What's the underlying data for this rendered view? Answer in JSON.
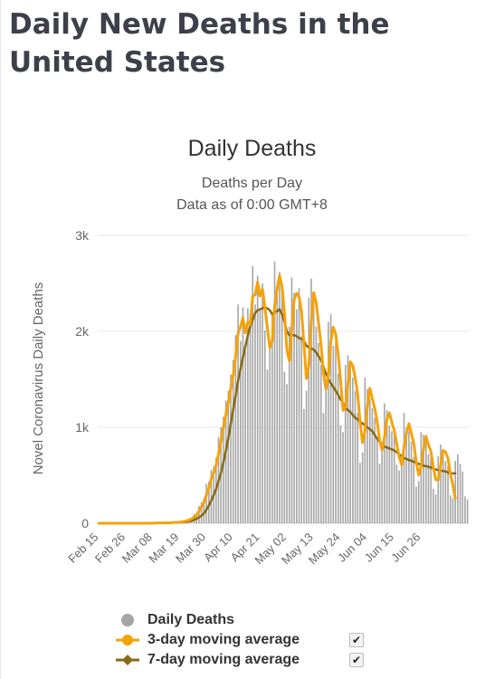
{
  "page": {
    "title": "Daily New Deaths in the United States"
  },
  "chart_data": {
    "type": "bar",
    "title": "Daily Deaths",
    "subtitle": "Deaths per Day",
    "subtitle2": "Data as of 0:00 GMT+8",
    "ylabel": "Novel Coronavirus Daily Deaths",
    "xlabel": "",
    "ylim": [
      0,
      3000
    ],
    "y_ticks": [
      "0",
      "1k",
      "2k",
      "3k"
    ],
    "y_tick_values": [
      0,
      1000,
      2000,
      3000
    ],
    "x_ticks": [
      "Feb 15",
      "Feb 26",
      "Mar 08",
      "Mar 19",
      "Mar 30",
      "Apr 10",
      "Apr 21",
      "May 02",
      "May 13",
      "May 24",
      "Jun 04",
      "Jun 15",
      "Jun 26"
    ],
    "x_range": [
      "Feb 15",
      "Jul 05"
    ],
    "grid": true,
    "legend_position": "bottom",
    "colors": {
      "bars": "#a6a6a6",
      "ma3": "#f5a20a",
      "ma7": "#8b6914"
    },
    "series": [
      {
        "name": "Daily Deaths",
        "type": "bar",
        "values": [
          0,
          0,
          0,
          0,
          0,
          0,
          0,
          0,
          0,
          0,
          0,
          0,
          0,
          0,
          0,
          1,
          0,
          0,
          0,
          1,
          1,
          0,
          3,
          3,
          2,
          4,
          3,
          4,
          5,
          9,
          8,
          10,
          11,
          14,
          20,
          25,
          35,
          45,
          60,
          95,
          105,
          180,
          220,
          255,
          410,
          430,
          555,
          590,
          680,
          900,
          1000,
          1110,
          1280,
          1380,
          1550,
          1700,
          1960,
          2280,
          1900,
          2250,
          1800,
          2240,
          2180,
          2680,
          2280,
          2580,
          2240,
          2500,
          2010,
          1600,
          1880,
          2200,
          2730,
          2400,
          2620,
          2400,
          1580,
          1450,
          2050,
          2560,
          2400,
          2230,
          2450,
          1950,
          1190,
          1380,
          2350,
          2550,
          2310,
          2050,
          1880,
          1650,
          1150,
          1400,
          2100,
          2180,
          1850,
          1890,
          1560,
          1020,
          950,
          1650,
          1750,
          1650,
          1520,
          1380,
          1150,
          630,
          740,
          1520,
          1400,
          1300,
          1200,
          1100,
          870,
          620,
          820,
          1250,
          1180,
          1020,
          960,
          920,
          610,
          550,
          670,
          1150,
          1000,
          960,
          850,
          690,
          380,
          440,
          950,
          920,
          850,
          720,
          680,
          360,
          300,
          700,
          820,
          760,
          650,
          600,
          290,
          260,
          650,
          720,
          620,
          540,
          280,
          250
        ]
      },
      {
        "name": "3-day moving average",
        "type": "line",
        "values": [
          0,
          0,
          0,
          0,
          0,
          0,
          0,
          0,
          0,
          0,
          0,
          0,
          0,
          0,
          0,
          0,
          0,
          0,
          0,
          0,
          1,
          1,
          1,
          2,
          3,
          3,
          4,
          4,
          5,
          6,
          7,
          9,
          10,
          12,
          15,
          20,
          27,
          35,
          47,
          67,
          87,
          127,
          168,
          218,
          295,
          365,
          465,
          525,
          608,
          723,
          860,
          1003,
          1130,
          1257,
          1403,
          1543,
          1737,
          1980,
          2047,
          2143,
          1983,
          2097,
          2073,
          2367,
          2380,
          2513,
          2367,
          2440,
          2250,
          2037,
          1830,
          1893,
          2270,
          2443,
          2583,
          2473,
          2200,
          1810,
          1693,
          2020,
          2337,
          2397,
          2360,
          2210,
          1863,
          1507,
          1640,
          2093,
          2403,
          2303,
          2080,
          1860,
          1560,
          1400,
          1550,
          1893,
          2043,
          1973,
          1767,
          1490,
          1177,
          1207,
          1450,
          1683,
          1640,
          1517,
          1350,
          1053,
          840,
          963,
          1220,
          1407,
          1300,
          1200,
          1057,
          863,
          763,
          897,
          1083,
          1150,
          1053,
          967,
          830,
          693,
          610,
          797,
          940,
          1037,
          937,
          833,
          640,
          503,
          590,
          770,
          907,
          817,
          750,
          587,
          453,
          453,
          607,
          760,
          743,
          677,
          513,
          400,
          260
        ]
      },
      {
        "name": "7-day moving average",
        "type": "line",
        "values": [
          0,
          0,
          0,
          0,
          0,
          0,
          0,
          0,
          0,
          0,
          0,
          0,
          0,
          0,
          0,
          0,
          0,
          0,
          0,
          0,
          0,
          1,
          1,
          1,
          2,
          2,
          3,
          3,
          4,
          5,
          6,
          7,
          8,
          9,
          11,
          13,
          17,
          21,
          27,
          36,
          47,
          61,
          79,
          104,
          140,
          183,
          236,
          293,
          356,
          441,
          526,
          634,
          755,
          887,
          1036,
          1187,
          1330,
          1485,
          1610,
          1730,
          1845,
          1960,
          2050,
          2120,
          2190,
          2220,
          2230,
          2240,
          2250,
          2240,
          2220,
          2180,
          2200,
          2210,
          2230,
          2180,
          2100,
          2000,
          1960,
          1960,
          1960,
          1950,
          1930,
          1920,
          1900,
          1850,
          1830,
          1820,
          1810,
          1780,
          1740,
          1700,
          1630,
          1560,
          1500,
          1460,
          1420,
          1380,
          1340,
          1290,
          1250,
          1200,
          1180,
          1160,
          1130,
          1100,
          1080,
          1060,
          1040,
          1020,
          1000,
          980,
          960,
          920,
          880,
          850,
          820,
          800,
          790,
          780,
          770,
          760,
          740,
          720,
          700,
          680,
          670,
          660,
          650,
          640,
          630,
          620,
          610,
          600,
          595,
          590,
          580,
          570,
          560,
          555,
          550,
          545,
          540,
          530,
          520,
          520,
          520
        ]
      }
    ]
  },
  "legend": {
    "items": [
      {
        "label": "Daily Deaths",
        "marker": "circle-icon",
        "checkbox": false
      },
      {
        "label": "3-day moving average",
        "marker": "circle-line-icon",
        "checkbox": true
      },
      {
        "label": "7-day moving average",
        "marker": "diamond-line-icon",
        "checkbox": true
      }
    ]
  }
}
